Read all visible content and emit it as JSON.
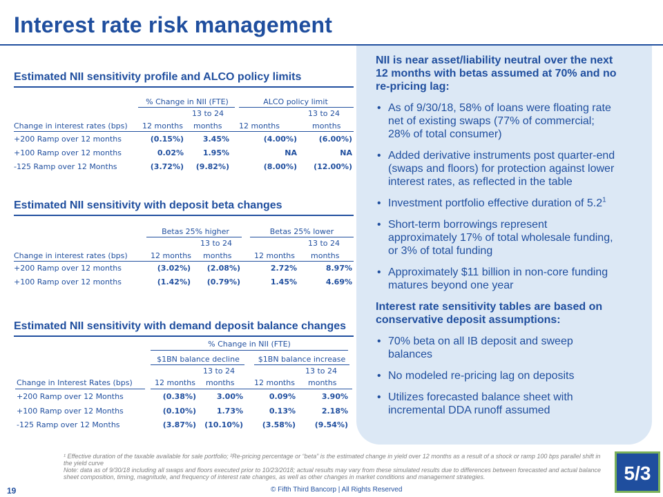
{
  "page": {
    "title": "Interest rate risk management",
    "page_number": "19",
    "copyright": "© Fifth Third Bancorp | All Rights Reserved",
    "logo_text": "5/3",
    "footnote": "¹ Effective duration of the taxable available for sale portfolio; ²Re-pricing percentage or “beta” is the estimated change in yield over 12 months as a result of a shock or ramp 100 bps parallel shift in the yield curve",
    "note": "Note: data as of 9/30/18 including all swaps and floors executed prior to 10/23/2018; actual results may vary from these simulated results due to differences between forecasted and actual balance sheet composition, timing, magnitude, and frequency of interest rate changes, as well as other changes in market conditions and management strategies."
  },
  "table1": {
    "heading": "Estimated NII sensitivity profile and ALCO policy limits",
    "group1": "% Change in NII (FTE)",
    "group2": "ALCO policy limit",
    "row_header": "Change in interest rates (bps)",
    "col_12": "12 months",
    "col_24a": "13 to 24",
    "col_24b": "months",
    "rows": [
      {
        "label": "+200 Ramp over 12 months",
        "v1": "(0.15%)",
        "v2": "3.45%",
        "v3": "(4.00%)",
        "v4": "(6.00%)"
      },
      {
        "label": "+100 Ramp over 12 months",
        "v1": "0.02%",
        "v2": "1.95%",
        "v3": "NA",
        "v4": "NA"
      },
      {
        "label": "-125 Ramp over 12 Months",
        "v1": "(3.72%)",
        "v2": "(9.82%)",
        "v3": "(8.00%)",
        "v4": "(12.00%)"
      }
    ]
  },
  "table2": {
    "heading": "Estimated NII sensitivity with deposit beta changes",
    "group1": "Betas 25% higher",
    "group2": "Betas 25% lower",
    "row_header": "Change in interest rates (bps)",
    "col_12": "12 months",
    "col_24a": "13 to 24",
    "col_24b": "months",
    "rows": [
      {
        "label": "+200 Ramp over 12 months",
        "v1": "(3.02%)",
        "v2": "(2.08%)",
        "v3": "2.72%",
        "v4": "8.97%"
      },
      {
        "label": "+100 Ramp over 12 months",
        "v1": "(1.42%)",
        "v2": "(0.79%)",
        "v3": "1.45%",
        "v4": "4.69%"
      }
    ]
  },
  "table3": {
    "heading": "Estimated NII sensitivity with demand deposit balance changes",
    "super": "% Change in NII (FTE)",
    "group1": "$1BN balance decline",
    "group2": "$1BN balance increase",
    "row_header": "Change in Interest Rates (bps)",
    "col_12": "12 months",
    "col_24a": "13 to 24",
    "col_24b": "months",
    "rows": [
      {
        "label": "+200 Ramp over 12 Months",
        "v1": "(0.38%)",
        "v2": "3.00%",
        "v3": "0.09%",
        "v4": "3.90%"
      },
      {
        "label": "+100 Ramp over 12 Months",
        "v1": "(0.10%)",
        "v2": "1.73%",
        "v3": "0.13%",
        "v4": "2.18%"
      },
      {
        "label": "-125 Ramp over 12 Months",
        "v1": "(3.87%)",
        "v2": "(10.10%)",
        "v3": "(3.58%)",
        "v4": "(9.54%)"
      }
    ]
  },
  "panel": {
    "head1": "NII is near asset/liability neutral over the next 12 months with betas assumed at 70% and no re-pricing lag:",
    "bullets1": [
      "As of 9/30/18, 58% of loans were floating rate net of existing swaps (77% of commercial; 28% of total consumer)",
      "Added derivative instruments post quarter-end (swaps and floors) for protection against lower interest rates, as reflected in the table",
      "Investment portfolio effective duration of 5.2",
      "Short-term borrowings represent approximately 17% of total wholesale funding, or 3% of total funding",
      "Approximately $11 billion in non-core funding matures beyond one year"
    ],
    "duration_sup": "1",
    "head2": "Interest rate sensitivity tables are based on conservative deposit assumptions:",
    "bullets2": [
      "70% beta on all IB deposit and sweep balances",
      "No modeled re-pricing lag on deposits",
      "Utilizes forecasted balance sheet with incremental DDA runoff assumed"
    ]
  }
}
